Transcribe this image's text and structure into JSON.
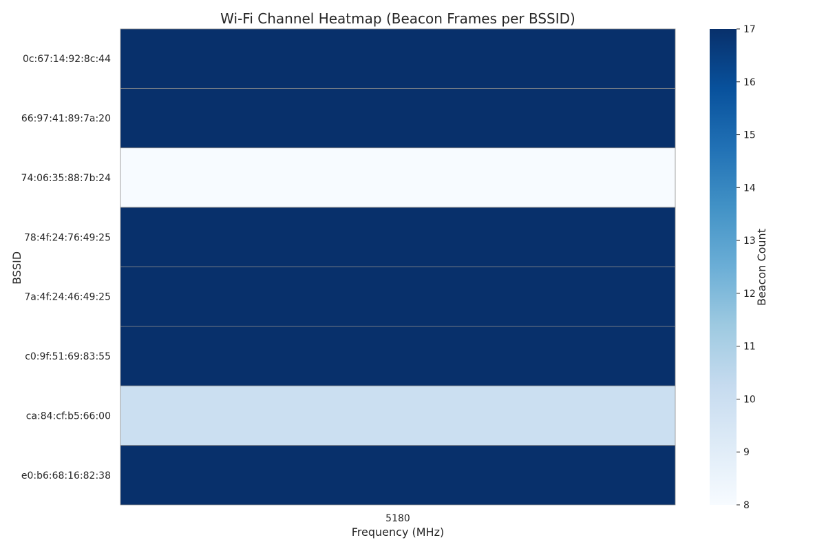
{
  "chart_data": {
    "type": "heatmap",
    "title": "Wi-Fi Channel Heatmap (Beacon Frames per BSSID)",
    "xlabel": "Frequency (MHz)",
    "ylabel": "BSSID",
    "x": [
      "5180"
    ],
    "y": [
      "0c:67:14:92:8c:44",
      "66:97:41:89:7a:20",
      "74:06:35:88:7b:24",
      "78:4f:24:76:49:25",
      "7a:4f:24:46:49:25",
      "c0:9f:51:69:83:55",
      "ca:84:cf:b5:66:00",
      "e0:b6:68:16:82:38"
    ],
    "values": [
      [
        17
      ],
      [
        17
      ],
      [
        8
      ],
      [
        17
      ],
      [
        17
      ],
      [
        17
      ],
      [
        10
      ],
      [
        17
      ]
    ],
    "colorbar": {
      "label": "Beacon Count",
      "range": [
        8,
        17
      ],
      "ticks": [
        "8",
        "9",
        "10",
        "11",
        "12",
        "13",
        "14",
        "15",
        "16",
        "17"
      ],
      "colormap": "Blues"
    },
    "grid": false
  }
}
